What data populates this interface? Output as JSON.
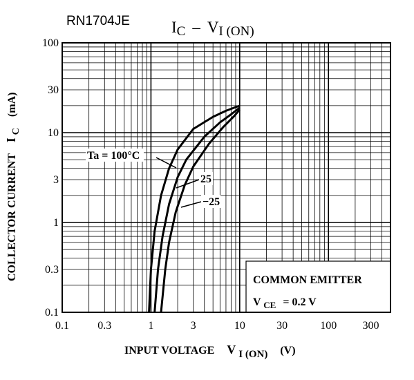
{
  "part_number": "RN1704JE",
  "title": {
    "main1": "I",
    "sub1": "C",
    "dash": "–",
    "main2": "V",
    "sub2": "I (ON)"
  },
  "chart_data": {
    "type": "line",
    "title": "IC – VI(ON)",
    "xlabel": "INPUT VOLTAGE  VI(ON)  (V)",
    "ylabel": "COLLECTOR CURRENT  IC  (mA)",
    "xlabel_parts": {
      "text": "INPUT VOLTAGE",
      "sym": "V",
      "sub": "I (ON)",
      "unit": "(V)"
    },
    "ylabel_parts": {
      "text": "COLLECTOR CURRENT",
      "sym": "I",
      "sub": "C",
      "unit": "(mA)"
    },
    "x_scale": "log",
    "y_scale": "log",
    "xlim": [
      0.1,
      500
    ],
    "ylim": [
      0.1,
      100
    ],
    "x_ticks": [
      0.1,
      0.3,
      1,
      3,
      10,
      30,
      100,
      300
    ],
    "x_tick_labels": [
      "0.1",
      "0.3",
      "1",
      "3",
      "10",
      "30",
      "100",
      "300"
    ],
    "y_ticks": [
      0.1,
      0.3,
      1,
      3,
      10,
      30,
      100
    ],
    "y_tick_labels": [
      "0.1",
      "0.3",
      "1",
      "3",
      "10",
      "30",
      "100"
    ],
    "grid": true,
    "series": [
      {
        "name": "Ta = 100°C",
        "label": "Ta = 100°C",
        "x": [
          0.95,
          1.0,
          1.1,
          1.3,
          1.6,
          2.0,
          3.0,
          5.0,
          7.0,
          10.0
        ],
        "y": [
          0.1,
          0.3,
          0.8,
          2.0,
          4.0,
          6.5,
          11.0,
          15.0,
          17.5,
          20.0
        ]
      },
      {
        "name": "25",
        "label": "25",
        "x": [
          1.1,
          1.2,
          1.35,
          1.6,
          2.0,
          2.5,
          4.0,
          6.0,
          8.0,
          10.0
        ],
        "y": [
          0.1,
          0.3,
          0.7,
          1.6,
          3.2,
          5.0,
          9.0,
          13.0,
          16.0,
          19.0
        ]
      },
      {
        "name": "−25",
        "label": "−25",
        "x": [
          1.3,
          1.45,
          1.6,
          1.9,
          2.4,
          3.0,
          4.5,
          6.5,
          8.5,
          10.0
        ],
        "y": [
          0.1,
          0.3,
          0.6,
          1.3,
          2.6,
          4.2,
          7.5,
          11.5,
          15.0,
          18.0
        ]
      }
    ],
    "annotation": {
      "line1": "COMMON EMITTER",
      "line2_sym": "V",
      "line2_sub": "CE",
      "line2_val": "= 0.2 V"
    }
  }
}
